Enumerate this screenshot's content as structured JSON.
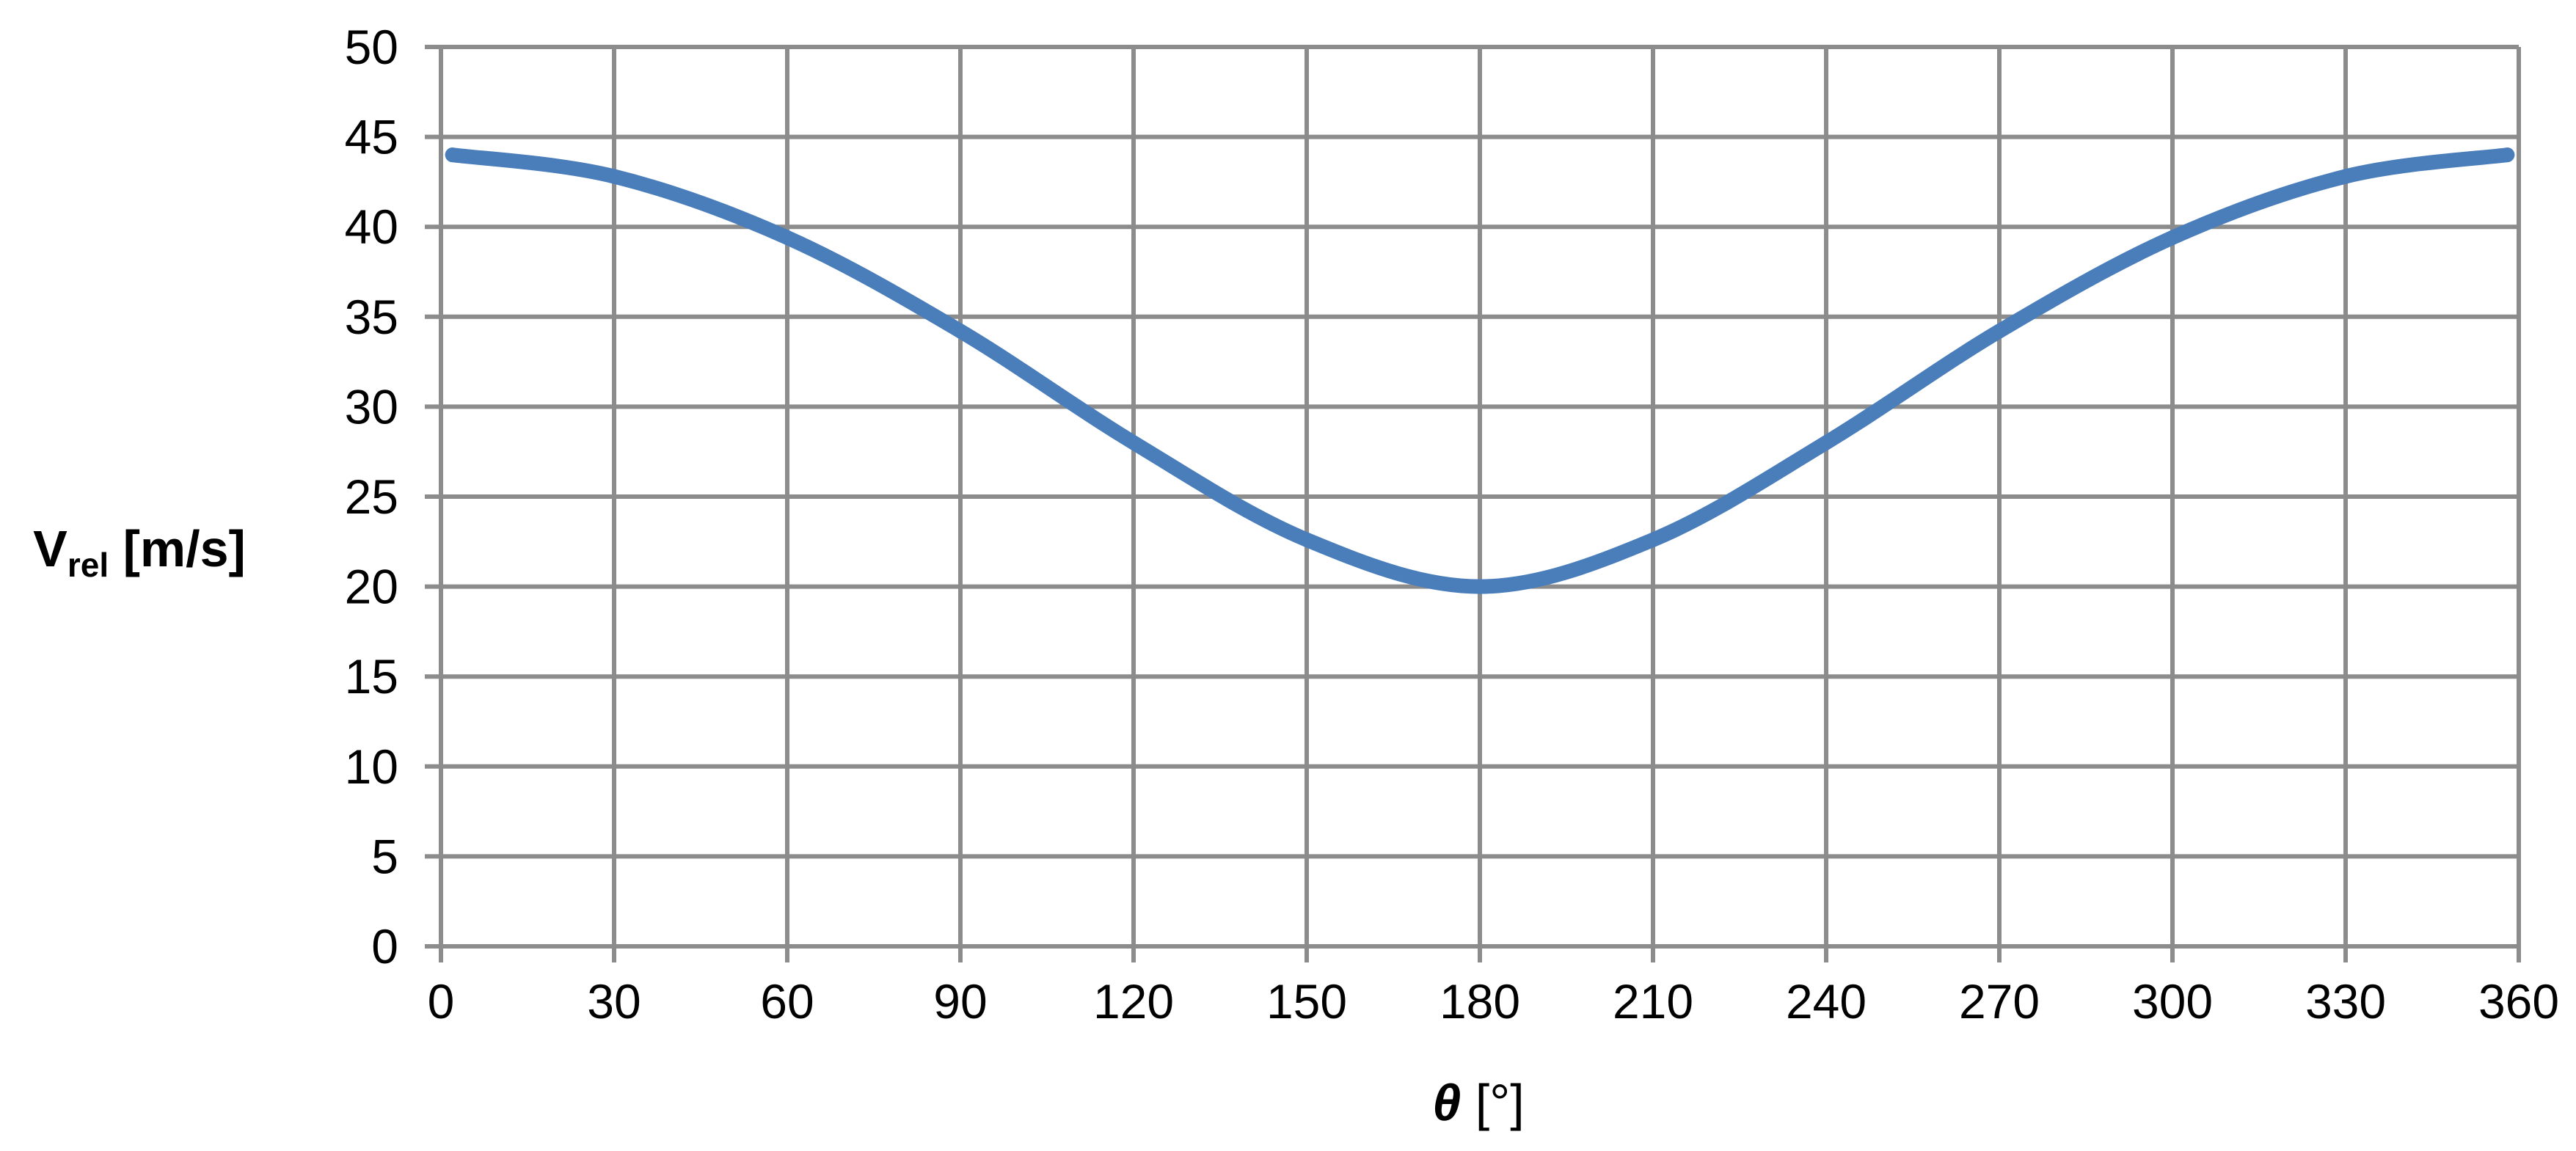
{
  "chart_data": {
    "type": "line",
    "xlabel_symbol": "θ",
    "xlabel_unit": " [°]",
    "ylabel_main": "V",
    "ylabel_sub": "rel",
    "ylabel_unit": " [m/s]",
    "xlim": [
      0,
      360
    ],
    "ylim": [
      0,
      50
    ],
    "x_ticks": [
      0,
      30,
      60,
      90,
      120,
      150,
      180,
      210,
      240,
      270,
      300,
      330,
      360
    ],
    "y_ticks": [
      0,
      5,
      10,
      15,
      20,
      25,
      30,
      35,
      40,
      45,
      50
    ],
    "grid": true,
    "legend": "none",
    "series": [
      {
        "color": "#4a7ebb",
        "x": [
          2,
          30,
          60,
          90,
          120,
          150,
          180,
          210,
          240,
          270,
          300,
          330,
          358
        ],
        "y": [
          44.0,
          42.8,
          39.4,
          34.2,
          28.0,
          22.6,
          20.0,
          22.6,
          28.0,
          34.2,
          39.4,
          42.8,
          44.0
        ]
      }
    ]
  }
}
